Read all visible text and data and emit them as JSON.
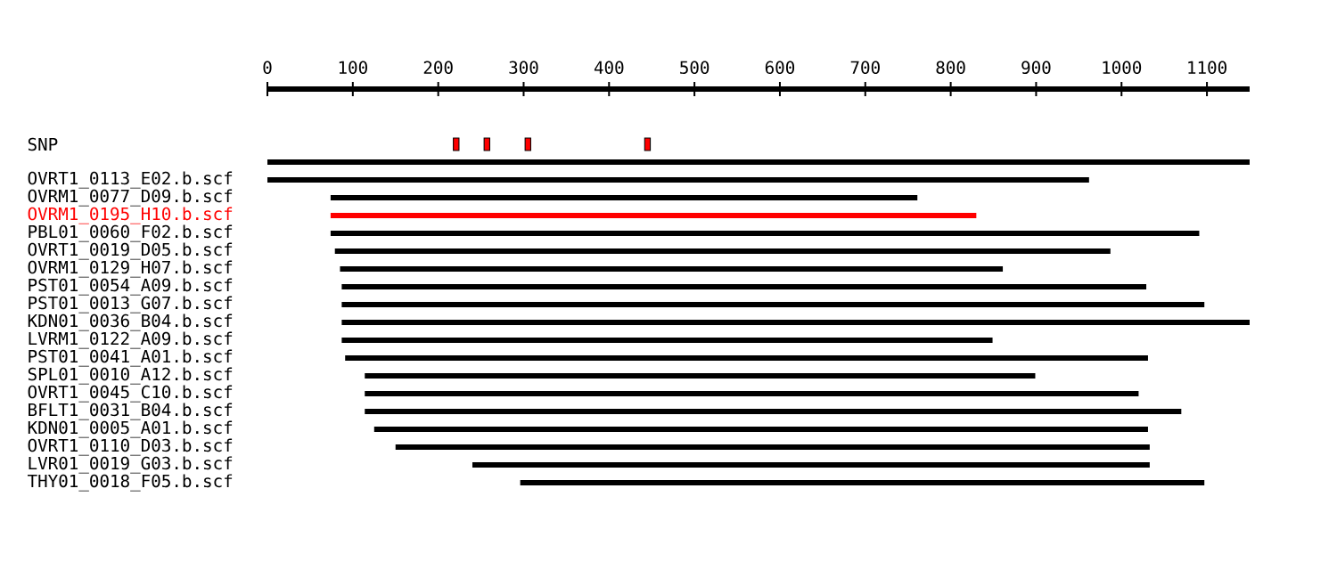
{
  "chart_data": {
    "type": "bar",
    "orientation": "horizontal",
    "categories": [
      "SNP",
      null,
      "OVRT1_0113_E02.b.scf",
      "OVRM1_0077_D09.b.scf",
      "OVRM1_0195_H10.b.scf",
      "PBL01_0060_F02.b.scf",
      "OVRT1_0019_D05.b.scf",
      "OVRM1_0129_H07.b.scf",
      "PST01_0054_A09.b.scf",
      "PST01_0013_G07.b.scf",
      "KDN01_0036_B04.b.scf",
      "LVRM1_0122_A09.b.scf",
      "PST01_0041_A01.b.scf",
      "SPL01_0010_A12.b.scf",
      "OVRT1_0045_C10.b.scf",
      "BFLT1_0031_B04.b.scf",
      "KDN01_0005_A01.b.scf",
      "OVRT1_0110_D03.b.scf",
      "LVR01_0019_G03.b.scf",
      "THY01_0018_F05.b.scf"
    ],
    "series": [
      {
        "type": "bar",
        "base": [
          null,
          0,
          0,
          74,
          74,
          74,
          79,
          85,
          87,
          87,
          87,
          87,
          91,
          114,
          114,
          114,
          125,
          150,
          240,
          296
        ],
        "values": [
          null,
          1150,
          962,
          687,
          756,
          1017,
          908,
          776,
          942,
          1010,
          1063,
          762,
          940,
          785,
          906,
          956,
          906,
          883,
          793,
          801
        ],
        "colors": [
          "#000000",
          "#000000",
          "#000000",
          "#000000",
          "#ff0000",
          "#000000",
          "#000000",
          "#000000",
          "#000000",
          "#000000",
          "#000000",
          "#000000",
          "#000000",
          "#000000",
          "#000000",
          "#000000",
          "#000000",
          "#000000",
          "#000000",
          "#000000"
        ]
      },
      {
        "type": "scatter",
        "x": [
          "SNP",
          "SNP",
          "SNP",
          "SNP"
        ],
        "values": [
          221,
          257,
          305,
          445
        ],
        "color": "#ff0000",
        "marker": "square"
      }
    ],
    "xlim": [
      0,
      1150
    ],
    "xticks": [
      0,
      100,
      200,
      300,
      400,
      500,
      600,
      700,
      800,
      900,
      1000,
      1100
    ],
    "grid": false
  }
}
